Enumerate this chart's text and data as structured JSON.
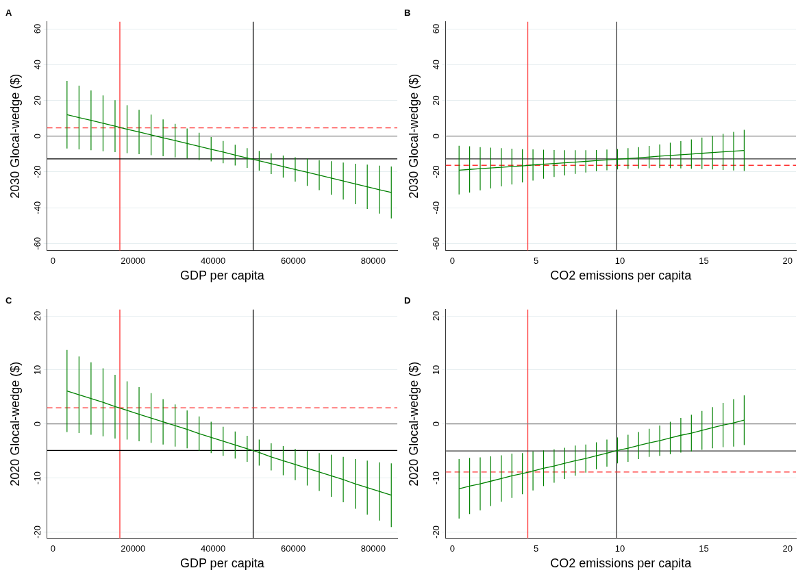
{
  "chart_data": [
    {
      "type": "line",
      "title": "A",
      "xlabel": "GDP per capita",
      "ylabel": "2030 Glocal-wedge ($)",
      "xlim": [
        -1500,
        86000
      ],
      "ylim": [
        -64,
        64
      ],
      "xticks": [
        0,
        20000,
        40000,
        60000,
        80000
      ],
      "yticks": [
        -60,
        -40,
        -20,
        0,
        20,
        40,
        60
      ],
      "grid": "y",
      "marker": "none",
      "line_style": "solid",
      "x": [
        3500,
        6500,
        9500,
        12500,
        15500,
        18500,
        21500,
        24500,
        27500,
        30500,
        33500,
        36500,
        39500,
        42500,
        45500,
        48500,
        51500,
        54500,
        57500,
        60500,
        63500,
        66500,
        69500,
        72500,
        75500,
        78500,
        81500,
        84500
      ],
      "series": [
        {
          "color": "#008000",
          "values": [
            12,
            10.4,
            8.8,
            7.2,
            5.6,
            3.9,
            2.3,
            0.7,
            -0.9,
            -2.5,
            -4.1,
            -5.7,
            -7.3,
            -8.9,
            -10.6,
            -12.2,
            -13.8,
            -15.4,
            -17.0,
            -18.6,
            -20.2,
            -21.8,
            -23.4,
            -25.1,
            -26.7,
            -28.3,
            -29.9,
            -31.5
          ],
          "errors": [
            18.9,
            17.8,
            16.7,
            15.6,
            14.5,
            13.4,
            12.4,
            11.3,
            10.3,
            9.4,
            8.4,
            7.6,
            6.8,
            6.2,
            5.8,
            5.5,
            5.5,
            5.8,
            6.2,
            6.8,
            7.6,
            8.4,
            9.4,
            10.3,
            11.3,
            12.4,
            13.4,
            14.5
          ]
        }
      ],
      "ref_lines": [
        {
          "axis": "x",
          "value": 16700,
          "color": "#ff3030",
          "line_style": "solid"
        },
        {
          "axis": "x",
          "value": 50000,
          "color": "#000000",
          "line_style": "solid"
        },
        {
          "axis": "y",
          "value": 4.6,
          "color": "#ff3030",
          "line_style": "dashed"
        },
        {
          "axis": "y",
          "value": 0,
          "color": "#808080",
          "line_style": "solid"
        },
        {
          "axis": "y",
          "value": -12.7,
          "color": "#000000",
          "line_style": "solid"
        }
      ]
    },
    {
      "type": "line",
      "title": "B",
      "xlabel": "CO2 emissions per capita",
      "ylabel": "2030 Glocal-wedge ($)",
      "xlim": [
        -0.4,
        20.5
      ],
      "ylim": [
        -64,
        64
      ],
      "xticks": [
        0,
        5,
        10,
        15,
        20
      ],
      "yticks": [
        -60,
        -40,
        -20,
        0,
        20,
        40,
        60
      ],
      "grid": "y",
      "marker": "none",
      "line_style": "solid",
      "x": [
        0.4,
        1.03,
        1.66,
        2.29,
        2.92,
        3.55,
        4.18,
        4.81,
        5.44,
        6.07,
        6.7,
        7.33,
        7.96,
        8.59,
        9.22,
        9.85,
        10.48,
        11.11,
        11.74,
        12.37,
        13,
        13.63,
        14.26,
        14.89,
        15.52,
        16.15,
        16.78,
        17.41
      ],
      "series": [
        {
          "color": "#008000",
          "values": [
            -19,
            -18.6,
            -18.2,
            -17.8,
            -17.4,
            -17.0,
            -16.6,
            -16.1,
            -15.7,
            -15.3,
            -14.9,
            -14.5,
            -14.1,
            -13.7,
            -13.3,
            -12.9,
            -12.5,
            -12.1,
            -11.7,
            -11.2,
            -10.8,
            -10.4,
            -10.0,
            -9.6,
            -9.2,
            -8.8,
            -8.4,
            -8.0
          ],
          "errors": [
            13.6,
            12.9,
            12.1,
            11.4,
            10.7,
            10.0,
            9.3,
            8.7,
            8.1,
            7.5,
            7.0,
            6.6,
            6.2,
            5.9,
            5.8,
            5.7,
            5.8,
            6.0,
            6.2,
            6.6,
            7.1,
            7.6,
            8.2,
            8.8,
            9.4,
            10.1,
            10.8,
            11.5
          ]
        }
      ],
      "ref_lines": [
        {
          "axis": "x",
          "value": 4.5,
          "color": "#ff3030",
          "line_style": "solid"
        },
        {
          "axis": "x",
          "value": 9.8,
          "color": "#333333",
          "line_style": "solid"
        },
        {
          "axis": "y",
          "value": -16.3,
          "color": "#ff3030",
          "line_style": "dashed"
        },
        {
          "axis": "y",
          "value": 0,
          "color": "#808080",
          "line_style": "solid"
        },
        {
          "axis": "y",
          "value": -12.7,
          "color": "#333333",
          "line_style": "solid"
        }
      ]
    },
    {
      "type": "line",
      "title": "C",
      "xlabel": "GDP per capita",
      "ylabel": "2020 Glocal-wedge ($)",
      "xlim": [
        -1500,
        86000
      ],
      "ylim": [
        -21.2,
        21.2
      ],
      "xticks": [
        0,
        20000,
        40000,
        60000,
        80000
      ],
      "yticks": [
        -20,
        -10,
        0,
        10,
        20
      ],
      "grid": "y",
      "marker": "none",
      "line_style": "solid",
      "x": [
        3500,
        6500,
        9500,
        12500,
        15500,
        18500,
        21500,
        24500,
        27500,
        30500,
        33500,
        36500,
        39500,
        42500,
        45500,
        48500,
        51500,
        54500,
        57500,
        60500,
        63500,
        66500,
        69500,
        72500,
        75500,
        78500,
        81500,
        84500
      ],
      "series": [
        {
          "color": "#008000",
          "values": [
            6.1,
            5.4,
            4.7,
            4.0,
            3.2,
            2.5,
            1.8,
            1.1,
            0.4,
            -0.3,
            -1.0,
            -1.8,
            -2.5,
            -3.2,
            -3.9,
            -4.6,
            -5.3,
            -6.1,
            -6.8,
            -7.5,
            -8.2,
            -8.9,
            -9.6,
            -10.3,
            -11.1,
            -11.8,
            -12.5,
            -13.2
          ],
          "errors": [
            7.6,
            7.1,
            6.7,
            6.3,
            5.9,
            5.4,
            5.0,
            4.6,
            4.2,
            3.9,
            3.5,
            3.2,
            2.9,
            2.7,
            2.5,
            2.4,
            2.4,
            2.5,
            2.7,
            2.9,
            3.2,
            3.5,
            3.9,
            4.2,
            4.6,
            5.0,
            5.4,
            5.9
          ]
        }
      ],
      "ref_lines": [
        {
          "axis": "x",
          "value": 16700,
          "color": "#ff3030",
          "line_style": "solid"
        },
        {
          "axis": "x",
          "value": 50000,
          "color": "#000000",
          "line_style": "solid"
        },
        {
          "axis": "y",
          "value": 3.0,
          "color": "#ff3030",
          "line_style": "dashed"
        },
        {
          "axis": "y",
          "value": 0,
          "color": "#808080",
          "line_style": "solid"
        },
        {
          "axis": "y",
          "value": -4.9,
          "color": "#000000",
          "line_style": "solid"
        }
      ]
    },
    {
      "type": "line",
      "title": "D",
      "xlabel": "CO2 emissions per capita",
      "ylabel": "2020 Glocal-wedge ($)",
      "xlim": [
        -0.4,
        20.5
      ],
      "ylim": [
        -21.2,
        21.2
      ],
      "xticks": [
        0,
        5,
        10,
        15,
        20
      ],
      "yticks": [
        -20,
        -10,
        0,
        10,
        20
      ],
      "grid": "y",
      "marker": "none",
      "line_style": "solid",
      "x": [
        0.4,
        1.03,
        1.66,
        2.29,
        2.92,
        3.55,
        4.18,
        4.81,
        5.44,
        6.07,
        6.7,
        7.33,
        7.96,
        8.59,
        9.22,
        9.85,
        10.48,
        11.11,
        11.74,
        12.37,
        13,
        13.63,
        14.26,
        14.89,
        15.52,
        16.15,
        16.78,
        17.41
      ],
      "series": [
        {
          "color": "#008000",
          "values": [
            -12.0,
            -11.5,
            -11.1,
            -10.6,
            -10.1,
            -9.6,
            -9.2,
            -8.7,
            -8.2,
            -7.8,
            -7.3,
            -6.8,
            -6.4,
            -5.9,
            -5.4,
            -4.9,
            -4.5,
            -4.0,
            -3.5,
            -3.1,
            -2.6,
            -2.1,
            -1.7,
            -1.2,
            -0.7,
            -0.2,
            0.2,
            0.7
          ],
          "errors": [
            5.5,
            5.2,
            4.9,
            4.6,
            4.3,
            4.1,
            3.8,
            3.6,
            3.3,
            3.1,
            2.9,
            2.8,
            2.6,
            2.5,
            2.5,
            2.4,
            2.5,
            2.5,
            2.6,
            2.8,
            3.0,
            3.2,
            3.4,
            3.6,
            3.8,
            4.1,
            4.4,
            4.6
          ]
        }
      ],
      "ref_lines": [
        {
          "axis": "x",
          "value": 4.5,
          "color": "#ff3030",
          "line_style": "solid"
        },
        {
          "axis": "x",
          "value": 9.8,
          "color": "#333333",
          "line_style": "solid"
        },
        {
          "axis": "y",
          "value": -8.9,
          "color": "#ff3030",
          "line_style": "dashed"
        },
        {
          "axis": "y",
          "value": 0,
          "color": "#808080",
          "line_style": "solid"
        },
        {
          "axis": "y",
          "value": -5.0,
          "color": "#333333",
          "line_style": "solid"
        }
      ]
    }
  ]
}
